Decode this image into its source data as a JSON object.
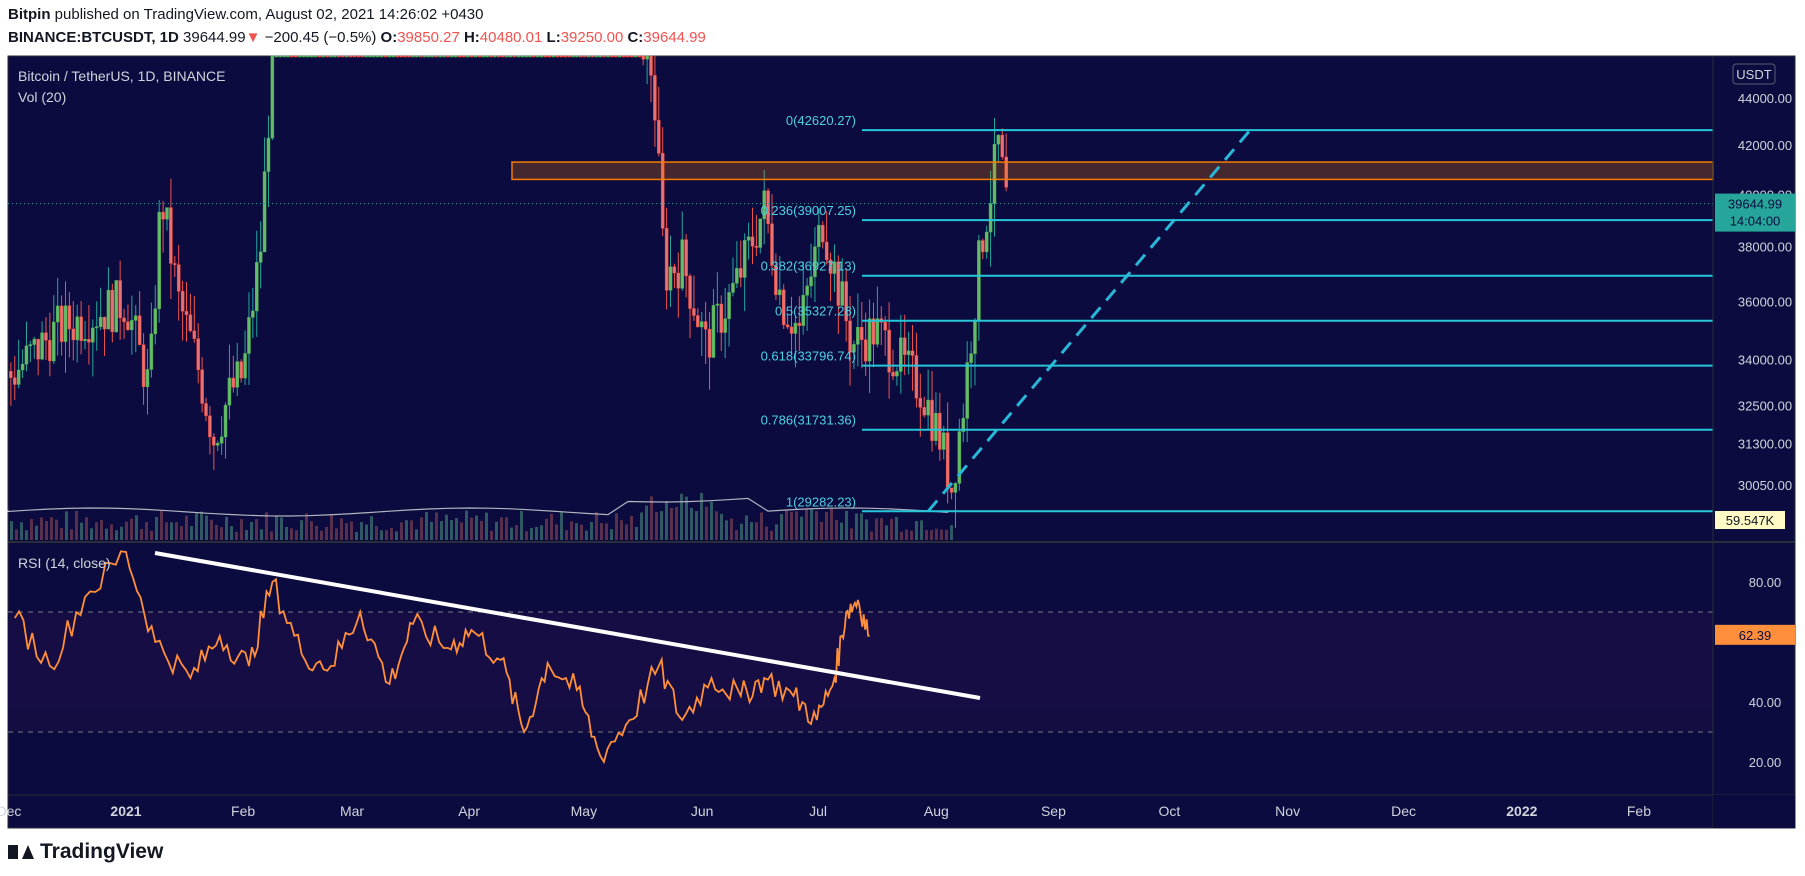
{
  "header": {
    "publisher": "Bitpin",
    "published_text": "published on TradingView.com, August 02, 2021 14:26:02 +0430",
    "symbol": "BINANCE:BTCUSDT, 1D",
    "last": "39644.99",
    "arrow": "▼",
    "change": "−200.45 (−0.5%)",
    "o_label": "O:",
    "o": "39850.27",
    "h_label": "H:",
    "h": "40480.01",
    "l_label": "L:",
    "l": "39250.00",
    "c_label": "C:",
    "c": "39644.99"
  },
  "chart_data": {
    "type": "line",
    "title": "Bitcoin / TetherUS, 1D, BINANCE",
    "volume_label": "Vol (20)",
    "currency": "USDT",
    "price_axis": {
      "ticks": [
        "44000.00",
        "42000.00",
        "40000.00",
        "38000.00",
        "36000.00",
        "34000.00",
        "32500.00",
        "31300.00",
        "30050.00"
      ],
      "tick_values": [
        44000,
        42000,
        40000,
        38000,
        36000,
        34000,
        32500,
        31300,
        30050
      ],
      "scale": "log"
    },
    "last_price": "39644.99",
    "countdown": "14:04:00",
    "volume_value": "59.547K",
    "fibonacci": [
      {
        "ratio": "0",
        "label": "0(42620.27)",
        "price": 42620.27
      },
      {
        "ratio": "0.236",
        "label": "0.236(39007.25)",
        "price": 39007.25
      },
      {
        "ratio": "0.382",
        "label": "0.382(36927.13)",
        "price": 36927.13
      },
      {
        "ratio": "0.5",
        "label": "0.5(35327.28)",
        "price": 35327.28
      },
      {
        "ratio": "0.618",
        "label": "0.618(33796.74)",
        "price": 33796.74
      },
      {
        "ratio": "0.786",
        "label": "0.786(31731.36)",
        "price": 31731.36
      },
      {
        "ratio": "1",
        "label": "1(29282.23)",
        "price": 29282.23
      }
    ],
    "resistance_zone": [
      40600,
      41300
    ],
    "rsi": {
      "label": "RSI (14, close)",
      "ticks": [
        "80.00",
        "40.00",
        "20.00"
      ],
      "tick_values": [
        80,
        40,
        20
      ],
      "upper_band": 70,
      "lower_band": 30,
      "last": "62.39",
      "last_value": 62.39,
      "ylim": [
        12,
        96
      ],
      "series_months": [
        0,
        0.3,
        0.6,
        0.95,
        1.2,
        1.5,
        1.75,
        2.0,
        2.2,
        2.45,
        2.7,
        2.95,
        3.2,
        3.4,
        3.7,
        3.9,
        4.15,
        4.35,
        4.55,
        4.8,
        5.0,
        5.25,
        5.5,
        5.7,
        5.95,
        6.2,
        6.4,
        6.65,
        6.85,
        7.0,
        7.1,
        7.2,
        7.3
      ],
      "series_values": [
        68,
        52,
        75,
        90,
        60,
        48,
        62,
        52,
        80,
        56,
        52,
        70,
        46,
        66,
        58,
        64,
        54,
        30,
        53,
        44,
        22,
        34,
        52,
        34,
        48,
        42,
        48,
        42,
        34,
        48,
        70,
        74,
        62
      ]
    },
    "x_axis": {
      "ticks": [
        "Dec",
        "2021",
        "Feb",
        "Mar",
        "Apr",
        "May",
        "Jun",
        "Jul",
        "Aug",
        "Sep",
        "Oct",
        "Nov",
        "Dec",
        "2022",
        "Feb"
      ],
      "tick_months": [
        -0.05,
        0.95,
        1.95,
        2.88,
        3.88,
        4.86,
        5.87,
        6.86,
        7.87,
        8.87,
        9.86,
        10.87,
        11.86,
        12.87,
        13.87
      ]
    }
  }
}
